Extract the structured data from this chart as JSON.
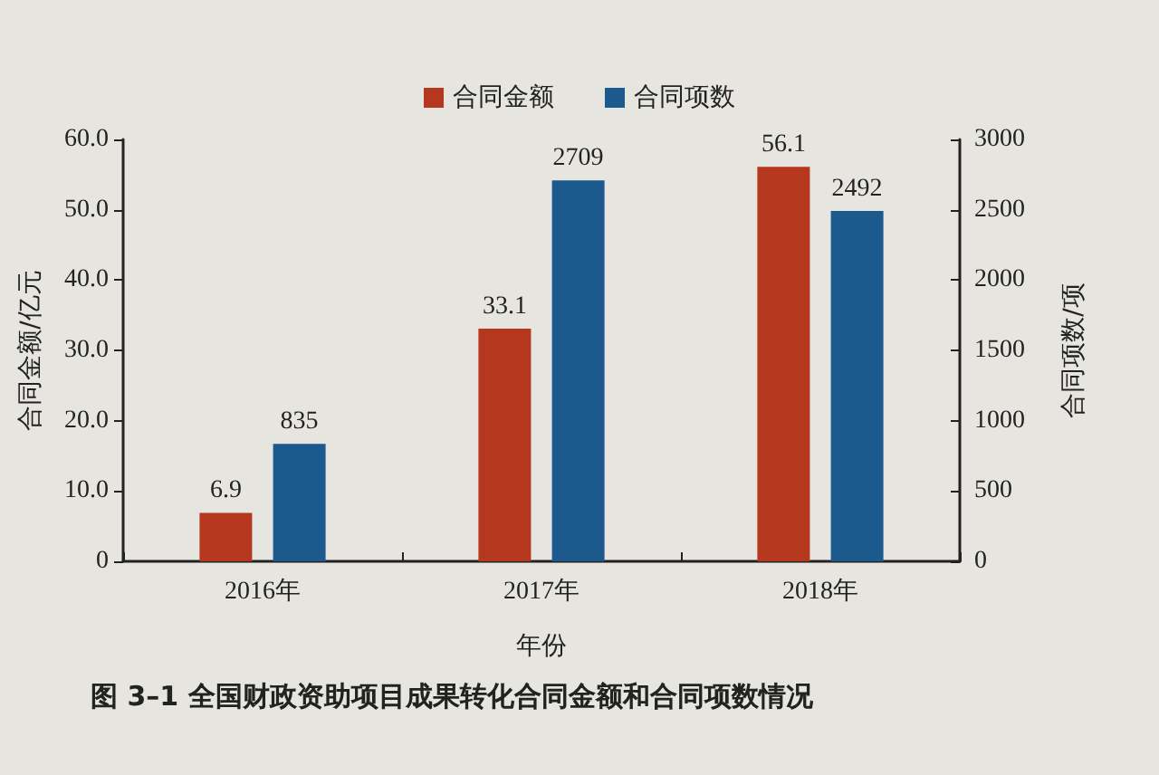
{
  "chart_data": {
    "type": "bar",
    "title": "图 3–1 全国财政资助项目成果转化合同金额和合同项数情况",
    "xlabel": "年份",
    "ylabel": "合同金额/亿元",
    "y2label": "合同项数/项",
    "categories": [
      "2016年",
      "2017年",
      "2018年"
    ],
    "series": [
      {
        "name": "合同金额",
        "color": "#b5381e",
        "values": [
          6.9,
          33.1,
          56.1
        ]
      },
      {
        "name": "合同项数",
        "color": "#1c5a8e",
        "values": [
          835,
          2709,
          2492
        ],
        "axis": "y2"
      }
    ],
    "ylim": [
      0,
      60
    ],
    "yticks": [
      0,
      {
        "value": 10,
        "label": "10.0"
      },
      {
        "value": 20,
        "label": "20.0"
      },
      {
        "value": 30,
        "label": "30.0"
      },
      {
        "value": 40,
        "label": "40.0"
      },
      {
        "value": 50,
        "label": "50.0"
      },
      {
        "value": 60,
        "label": "60.0"
      }
    ],
    "y2lim": [
      0,
      3000
    ],
    "y2ticks": [
      0,
      500,
      1000,
      1500,
      2000,
      2500,
      3000
    ],
    "data_labels": true,
    "legend": "top"
  }
}
